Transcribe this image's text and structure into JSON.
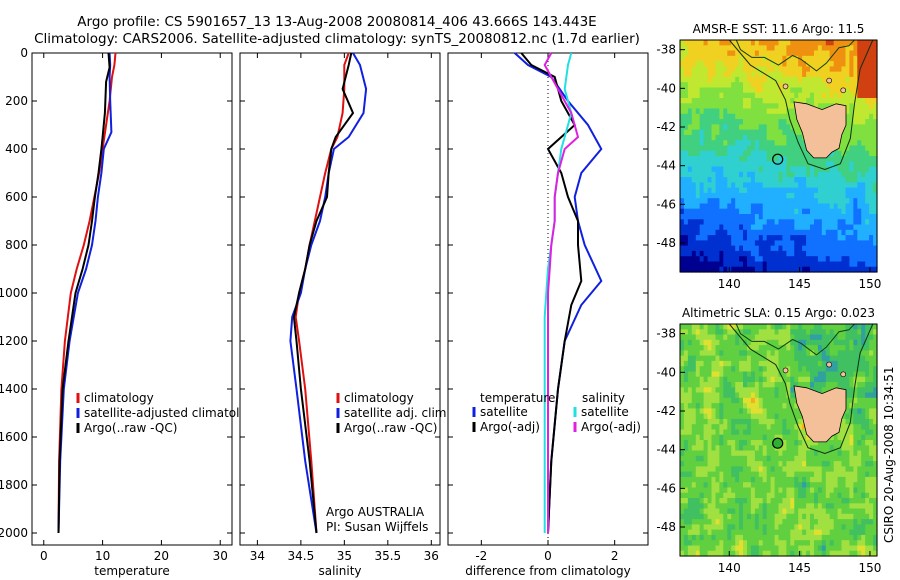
{
  "header": {
    "line1": "Argo profile: CS 5901657_13 13-Aug-2008 20080814_406 43.666S 143.443E",
    "line2": "Climatology: CARS2006. Satellite-adjusted climatology: synTS_20080812.nc (1.7d earlier)"
  },
  "credit": "CSIRO 20-Aug-2008 10:34:51",
  "colors": {
    "climatology": "#e01010",
    "satellite": "#1020e0",
    "argo": "#000000",
    "sat_salinity": "#20e0e0",
    "argo_salinity": "#e020e0",
    "land": "#f4c09a"
  },
  "chart_data": [
    {
      "id": "temperature",
      "type": "line",
      "xlabel": "temperature",
      "ylabel": "",
      "xlim": [
        -2,
        32
      ],
      "ylim": [
        0,
        2050
      ],
      "y_reversed": true,
      "xticks": [
        0,
        10,
        20,
        30
      ],
      "yticks": [
        0,
        200,
        400,
        600,
        800,
        1000,
        1200,
        1400,
        1600,
        1800,
        2000
      ],
      "legend": {
        "placement": "bottom-right",
        "entries": [
          "climatology",
          "satellite-adjusted climatology",
          "Argo(..raw -QC)"
        ]
      },
      "series": [
        {
          "name": "climatology",
          "color": "#e01010",
          "x": [
            12.2,
            12.0,
            11.6,
            11.2,
            10.6,
            10.0,
            9.4,
            8.6,
            7.8,
            6.8,
            5.6,
            4.6,
            3.6,
            3.0,
            2.6,
            2.5
          ],
          "y": [
            0,
            50,
            100,
            200,
            300,
            400,
            500,
            600,
            700,
            800,
            900,
            1000,
            1200,
            1400,
            1700,
            2000
          ]
        },
        {
          "name": "satellite-adjusted climatology",
          "color": "#1020e0",
          "x": [
            11.2,
            11.3,
            11.2,
            11.3,
            11.5,
            10.2,
            9.8,
            9.2,
            8.8,
            8.2,
            7.2,
            5.8,
            4.4,
            3.4,
            2.8,
            2.5
          ],
          "y": [
            0,
            50,
            100,
            200,
            330,
            400,
            500,
            600,
            700,
            800,
            900,
            1000,
            1200,
            1400,
            1700,
            2000
          ]
        },
        {
          "name": "Argo(..raw -QC)",
          "color": "#000000",
          "x": [
            11.0,
            11.2,
            10.6,
            10.4,
            10.0,
            9.8,
            9.3,
            8.7,
            8.2,
            7.6,
            6.6,
            5.4,
            4.2,
            3.2,
            2.7,
            2.5
          ],
          "y": [
            0,
            60,
            120,
            250,
            350,
            400,
            500,
            600,
            700,
            800,
            900,
            1000,
            1200,
            1400,
            1700,
            2000
          ]
        }
      ]
    },
    {
      "id": "salinity",
      "type": "line",
      "xlabel": "salinity",
      "ylabel": "",
      "xlim": [
        33.8,
        36.1
      ],
      "ylim": [
        0,
        2050
      ],
      "y_reversed": true,
      "xticks": [
        34,
        34.5,
        35,
        35.5,
        36
      ],
      "legend": {
        "placement": "bottom-right",
        "entries": [
          "climatology",
          "satellite adj. clim.",
          "Argo(..raw -QC)"
        ]
      },
      "annotations": [
        "Argo AUSTRALIA",
        "PI: Susan Wijffels"
      ],
      "series": [
        {
          "name": "climatology",
          "color": "#e01010",
          "x": [
            35.05,
            35.0,
            35.0,
            34.98,
            34.92,
            34.85,
            34.78,
            34.72,
            34.66,
            34.6,
            34.55,
            34.48,
            34.44,
            34.48,
            34.55,
            34.62,
            34.68
          ],
          "y": [
            0,
            50,
            150,
            250,
            350,
            400,
            500,
            600,
            700,
            800,
            900,
            1000,
            1100,
            1200,
            1400,
            1700,
            2000
          ]
        },
        {
          "name": "satellite adj. clim.",
          "color": "#1020e0",
          "x": [
            35.1,
            35.18,
            35.25,
            35.22,
            35.05,
            34.88,
            34.82,
            34.78,
            34.72,
            34.62,
            34.55,
            34.5,
            34.4,
            34.38,
            34.45,
            34.55,
            34.68
          ],
          "y": [
            0,
            50,
            150,
            250,
            350,
            400,
            500,
            600,
            700,
            800,
            900,
            1000,
            1100,
            1200,
            1400,
            1700,
            2000
          ]
        },
        {
          "name": "Argo(..raw -QC)",
          "color": "#000000",
          "x": [
            35.08,
            35.05,
            34.98,
            35.1,
            34.9,
            34.85,
            34.82,
            34.8,
            34.68,
            34.6,
            34.55,
            34.48,
            34.42,
            34.45,
            34.5,
            34.6,
            34.68
          ],
          "y": [
            0,
            50,
            150,
            250,
            350,
            400,
            500,
            600,
            700,
            800,
            900,
            1000,
            1100,
            1200,
            1400,
            1700,
            2000
          ]
        }
      ]
    },
    {
      "id": "difference",
      "type": "line",
      "xlabel": "difference from climatology",
      "ylabel": "",
      "xlim": [
        -3,
        3
      ],
      "ylim": [
        0,
        2050
      ],
      "y_reversed": true,
      "xticks": [
        -2,
        0,
        2
      ],
      "zero_line": true,
      "legend": {
        "placement": "bottom",
        "group_titles": [
          "temperature",
          "salinity"
        ],
        "entries": [
          "satellite",
          "Argo(-adj)",
          "satellite",
          "Argo(-adj)"
        ]
      },
      "series": [
        {
          "name": "satellite",
          "group": "temperature",
          "color": "#1020e0",
          "x": [
            -1.0,
            -0.6,
            0.1,
            0.6,
            1.2,
            1.6,
            1.0,
            0.8,
            0.9,
            1.1,
            1.6,
            1.0,
            0.5,
            0.3,
            0.1,
            0.0
          ],
          "y": [
            0,
            50,
            100,
            200,
            300,
            400,
            500,
            600,
            700,
            800,
            950,
            1050,
            1200,
            1400,
            1700,
            2000
          ]
        },
        {
          "name": "Argo(-adj)",
          "group": "temperature",
          "color": "#000000",
          "x": [
            -0.8,
            -0.5,
            0.2,
            0.4,
            0.8,
            0.0,
            0.4,
            0.6,
            0.9,
            0.9,
            1.0,
            0.7,
            0.5,
            0.3,
            0.1,
            0.0
          ],
          "y": [
            0,
            50,
            100,
            200,
            300,
            400,
            500,
            600,
            700,
            800,
            950,
            1050,
            1200,
            1400,
            1700,
            2000
          ]
        },
        {
          "name": "satellite",
          "group": "salinity",
          "color": "#20e0e0",
          "x": [
            0.7,
            0.6,
            0.5,
            0.7,
            0.5,
            0.4,
            0.3,
            0.2,
            0.2,
            0.1,
            0.0,
            -0.05,
            -0.1,
            -0.1,
            -0.1,
            -0.1
          ],
          "y": [
            0,
            50,
            150,
            250,
            350,
            400,
            500,
            600,
            700,
            800,
            900,
            1000,
            1100,
            1200,
            1400,
            2000
          ]
        },
        {
          "name": "Argo(-adj)",
          "group": "salinity",
          "color": "#e020e0",
          "x": [
            0.1,
            -0.1,
            0.3,
            0.7,
            0.9,
            0.5,
            0.3,
            0.2,
            0.2,
            0.1,
            0.05,
            0.0,
            0.0,
            0.0,
            0.0,
            0.0
          ],
          "y": [
            0,
            50,
            150,
            250,
            350,
            400,
            500,
            600,
            700,
            800,
            900,
            1000,
            1100,
            1200,
            1400,
            2000
          ]
        }
      ]
    },
    {
      "id": "sst_map",
      "type": "heatmap",
      "title": "AMSR-E SST: 11.6 Argo: 11.5",
      "xlim": [
        136.5,
        150.5
      ],
      "ylim": [
        -49.5,
        -37.5
      ],
      "xticks": [
        140,
        145,
        150
      ],
      "yticks": [
        -38,
        -40,
        -42,
        -44,
        -46,
        -48
      ],
      "marker": {
        "lon": 143.443,
        "lat": -43.666
      },
      "palette": [
        "#000090",
        "#0030d0",
        "#1070ff",
        "#20b0ff",
        "#30d0d0",
        "#40d080",
        "#80e040",
        "#c0e830",
        "#f0d020",
        "#f09010",
        "#d04010"
      ]
    },
    {
      "id": "sla_map",
      "type": "heatmap",
      "title": "Altimetric SLA: 0.15 Argo: 0.023",
      "xlim": [
        136.5,
        150.5
      ],
      "ylim": [
        -49.5,
        -37.5
      ],
      "xticks": [
        140,
        145,
        150
      ],
      "yticks": [
        -38,
        -40,
        -42,
        -44,
        -46,
        -48
      ],
      "marker": {
        "lon": 143.443,
        "lat": -43.666
      },
      "palette": [
        "#2060c0",
        "#30a0a0",
        "#40c060",
        "#60d040",
        "#a0e040",
        "#e0e030",
        "#f0b020",
        "#f08020"
      ]
    }
  ]
}
